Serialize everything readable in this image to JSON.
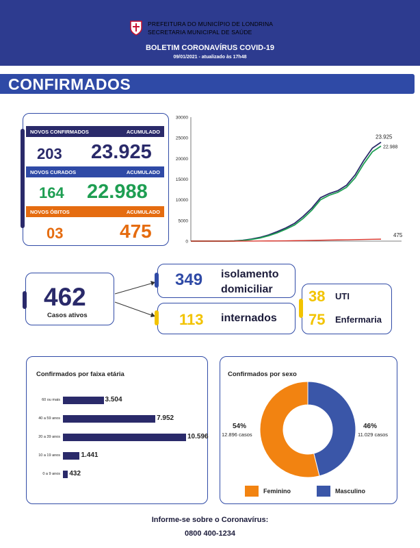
{
  "header": {
    "org_line1": "PREFEITURA DO MUNICÍPIO DE LONDRINA",
    "org_line2": "SECRETARIA MUNICIPAL DE SAÚDE",
    "bulletin_title": "BOLETIM CORONAVÍRUS COVID-19",
    "date_line": "09/01/2021 - atualizado às 17h48"
  },
  "section_title": "CONFIRMADOS",
  "stats": {
    "confirmed": {
      "label": "NOVOS CONFIRMADOS",
      "acc_label": "ACUMULADO",
      "new": "203",
      "total": "23.925"
    },
    "recovered": {
      "label": "NOVOS CURADOS",
      "acc_label": "ACUMULADO",
      "new": "164",
      "total": "22.988"
    },
    "deaths": {
      "label": "NOVOS ÓBITOS",
      "acc_label": "ACUMULADO",
      "new": "03",
      "total": "475"
    }
  },
  "colors": {
    "navy": "#2a2a6a",
    "blue": "#2f4aa6",
    "green": "#1e9e52",
    "orange": "#e56c10",
    "yellow": "#f2c300",
    "red": "#d9342b"
  },
  "active": {
    "count": "462",
    "label": "Casos ativos",
    "home_isolation": {
      "count": "349",
      "label_line1": "isolamento",
      "label_line2": "domiciliar"
    },
    "hospitalized": {
      "count": "113",
      "label": "internados"
    },
    "icu": {
      "count": "38",
      "label": "UTI"
    },
    "ward": {
      "count": "75",
      "label": "Enfermaria"
    }
  },
  "age_panel": {
    "title": "Confirmados por faixa etária"
  },
  "sex_panel": {
    "title": "Confirmados por sexo",
    "female": {
      "pct": "54%",
      "cases": "12.896 casos",
      "legend": "Feminino"
    },
    "male": {
      "pct": "46%",
      "cases": "11.029 casos",
      "legend": "Masculino"
    }
  },
  "footer": {
    "line1": "Informe-se sobre o Coronavírus:",
    "line2": "0800 400-1234"
  },
  "chart_data": [
    {
      "type": "line",
      "title": "",
      "ylim": [
        0,
        30000
      ],
      "yticks": [
        "0",
        "5000",
        "10000",
        "15000",
        "20000",
        "25000",
        "30000"
      ],
      "series": [
        {
          "name": "Confirmados",
          "color": "#2a2a6a",
          "values": [
            0,
            0,
            0,
            0,
            0,
            50,
            200,
            500,
            900,
            1500,
            2300,
            3200,
            4300,
            6000,
            8000,
            10500,
            11500,
            12200,
            13500,
            16000,
            19500,
            22500,
            23925
          ],
          "end_label": "23.925"
        },
        {
          "name": "Curados",
          "color": "#1e9e52",
          "values": [
            0,
            0,
            0,
            0,
            0,
            30,
            150,
            400,
            750,
            1300,
            2000,
            2900,
            3900,
            5500,
            7500,
            10000,
            11100,
            11800,
            13000,
            15300,
            18700,
            21600,
            22988
          ],
          "end_label": "22.988"
        },
        {
          "name": "Óbitos",
          "color": "#d9342b",
          "values": [
            0,
            0,
            0,
            0,
            0,
            1,
            5,
            12,
            25,
            40,
            60,
            80,
            105,
            140,
            180,
            225,
            260,
            290,
            320,
            360,
            410,
            450,
            475
          ],
          "end_label": "475"
        }
      ]
    },
    {
      "type": "bar",
      "title": "Confirmados por faixa etária",
      "categories": [
        "60 ou mais",
        "40 a 59 anos",
        "20 a 39 anos",
        "10 a 19 anos",
        "0 a 9 anos"
      ],
      "values": [
        3504,
        7952,
        10596,
        1441,
        432
      ],
      "value_labels": [
        "3.504",
        "7.952",
        "10.596",
        "1.441",
        "432"
      ]
    },
    {
      "type": "pie",
      "title": "Confirmados por sexo",
      "categories": [
        "Feminino",
        "Masculino"
      ],
      "values": [
        12896,
        11029
      ],
      "colors": [
        "#f28311",
        "#3a56a8"
      ]
    }
  ]
}
